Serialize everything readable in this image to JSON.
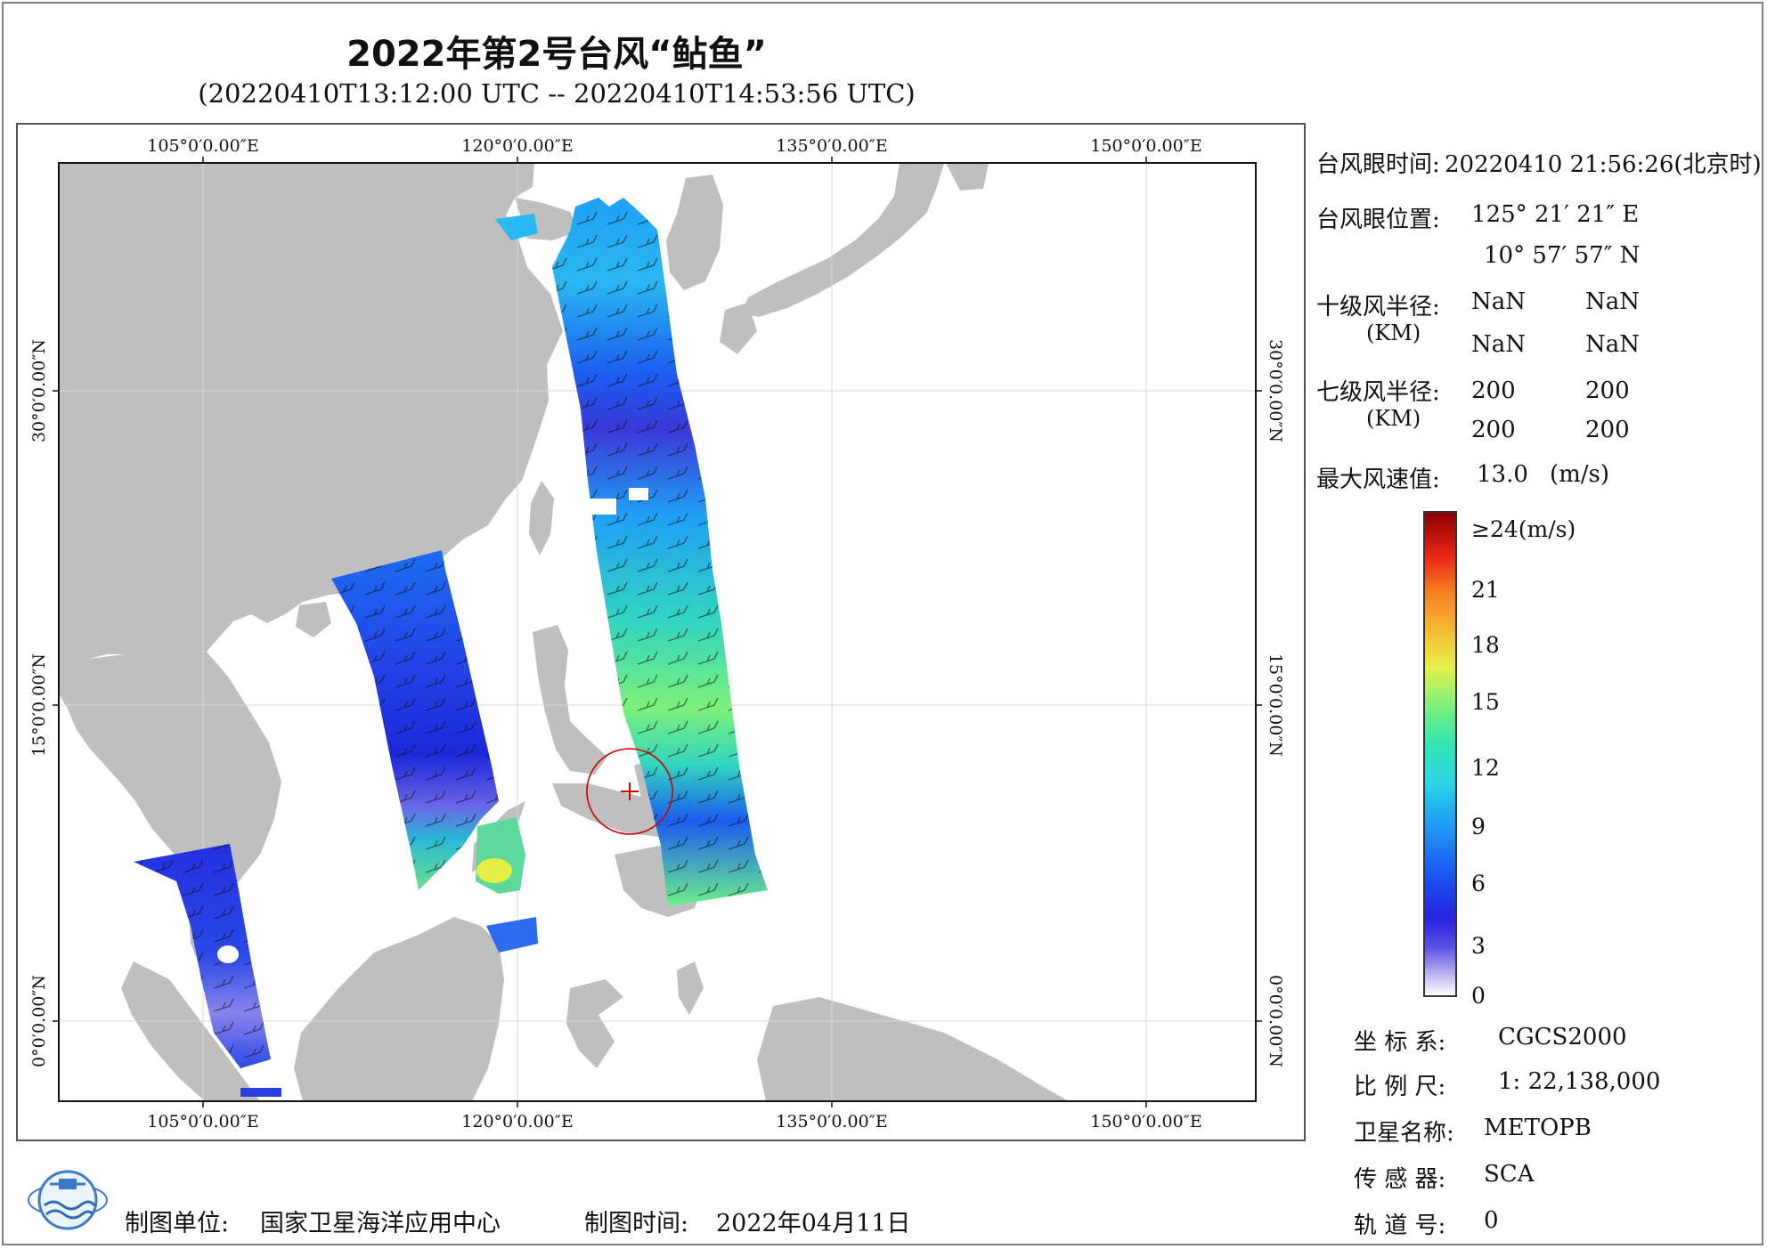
{
  "title": "2022年第2号台风“鲇鱼”",
  "subtitle": "(20220410T13:12:00 UTC -- 20220410T14:53:56 UTC)",
  "map": {
    "lon_ticks": [
      "105°0′0.00″E",
      "120°0′0.00″E",
      "135°0′0.00″E",
      "150°0′0.00″E"
    ],
    "lat_ticks": [
      "30°0′0.00″N",
      "15°0′0.00″N",
      "0°0′0.00″N"
    ],
    "extent": {
      "lon": [
        98,
        155
      ],
      "lat": [
        -3.8,
        41
      ]
    },
    "typhoon_eye": {
      "lon": 125.36,
      "lat": 10.97
    },
    "land_color": "#bfbfbf",
    "ocean_color": "#ffffff",
    "eye_color": "#cc0000"
  },
  "info": {
    "eye_time_label": "台风眼时间:",
    "eye_time_value": "20220410 21:56:26(北京时)",
    "eye_pos_label": "台风眼位置:",
    "eye_lon": "125° 21′ 21″ E",
    "eye_lat": "10° 57′ 57″ N",
    "r10_label": "十级风半径:",
    "r10_unit": "(KM)",
    "r10_values": [
      "NaN",
      "NaN",
      "NaN",
      "NaN"
    ],
    "r7_label": "七级风半径:",
    "r7_unit": "(KM)",
    "r7_values": [
      "200",
      "200",
      "200",
      "200"
    ],
    "max_wind_label": "最大风速值:",
    "max_wind_value": "13.0",
    "max_wind_unit": "(m/s)"
  },
  "colorbar": {
    "top_label": "≥24(m/s)",
    "ticks": [
      "21",
      "18",
      "15",
      "12",
      "9",
      "6",
      "3",
      "0"
    ]
  },
  "meta": {
    "crs_label": "坐 标 系:",
    "crs_value": "CGCS2000",
    "scale_label": "比 例 尺:",
    "scale_value": "1: 22,138,000",
    "satellite_label": "卫星名称:",
    "satellite_value": "METOPB",
    "sensor_label": "传 感 器:",
    "sensor_value": "SCA",
    "orbit_label": "轨 道 号:",
    "orbit_value": "0"
  },
  "footer": {
    "producer_label": "制图单位:",
    "producer_value": "国家卫星海洋应用中心",
    "date_label": "制图时间:",
    "date_value": "2022年04月11日"
  }
}
